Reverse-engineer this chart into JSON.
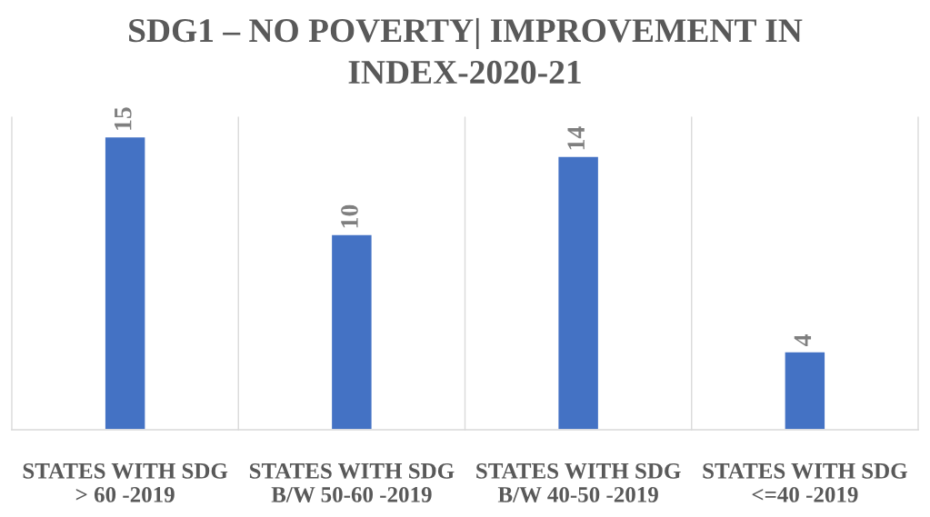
{
  "chart_data": {
    "type": "bar",
    "title": "SDG1 – NO POVERTY| IMPROVEMENT IN\nINDEX-2020-21",
    "categories": [
      "STATES WITH SDG\n> 60 -2019",
      "STATES WITH SDG\nB/W 50-60 -2019",
      "STATES WITH SDG\nB/W 40-50 -2019",
      "STATES WITH SDG\n<=40 -2019"
    ],
    "values": [
      15,
      10,
      14,
      4
    ],
    "color": "#4472c4",
    "ylim": [
      0,
      16
    ],
    "grid": "x",
    "data_labels": true,
    "tick_labels": "x"
  }
}
